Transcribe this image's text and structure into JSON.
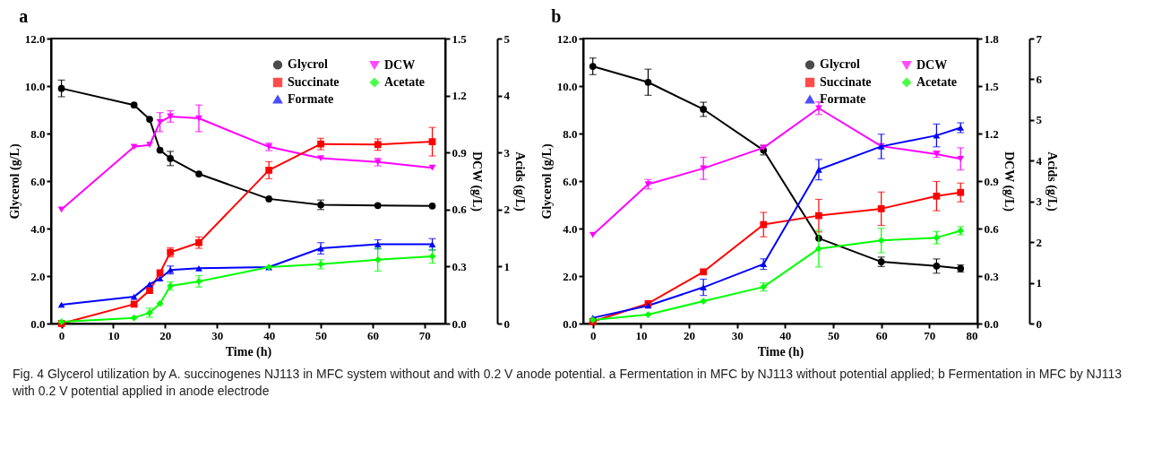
{
  "chart_data": [
    {
      "type": "line",
      "title": "a",
      "xlabel": "Time (h)",
      "ylabel": "Glycerol (g/L)",
      "y2label": "DCW (g/L)",
      "y3label": "Acids (g/L)",
      "x": [
        0,
        14,
        17,
        19,
        21,
        26.5,
        40,
        50,
        61,
        71.5
      ],
      "xlim": [
        -2,
        74
      ],
      "xticks": [
        0,
        10,
        20,
        30,
        40,
        50,
        60,
        70
      ],
      "ylim": [
        0,
        12
      ],
      "yticks": [
        {
          "value": 0,
          "label": "0.0"
        },
        {
          "value": 2,
          "label": "2.0"
        },
        {
          "value": 4,
          "label": "4.0"
        },
        {
          "value": 6,
          "label": "6.0"
        },
        {
          "value": 8,
          "label": "8.0"
        },
        {
          "value": 10,
          "label": "10.0"
        },
        {
          "value": 12,
          "label": "12.0"
        }
      ],
      "y2lim": [
        0,
        1.5
      ],
      "y2ticks": [
        {
          "value": 0,
          "label": "0.0"
        },
        0.3,
        0.6,
        0.9,
        1.2,
        1.5
      ],
      "y3lim": [
        0,
        5
      ],
      "y3ticks": [
        0,
        1,
        2,
        3,
        4,
        5
      ],
      "legend": "top right",
      "grid": false,
      "line_style": "solid",
      "series": [
        {
          "name": "Glycrol",
          "color": "#000000",
          "marker": "circle",
          "values": [
            9.9,
            9.2,
            8.6,
            7.3,
            6.95,
            6.3,
            5.25,
            5.0,
            4.97,
            4.95
          ],
          "errors": [
            0.35,
            null,
            null,
            null,
            0.3,
            null,
            null,
            0.2,
            null,
            null
          ]
        },
        {
          "name": "Succinate",
          "color": "#ff0000",
          "marker": "square",
          "axis": "y3",
          "values": [
            0,
            0.34,
            0.58,
            0.89,
            1.25,
            1.42,
            2.69,
            3.15,
            3.14,
            3.19
          ],
          "errors": [
            null,
            null,
            null,
            null,
            0.08,
            0.1,
            0.15,
            0.1,
            0.1,
            0.25
          ]
        },
        {
          "name": "Formate",
          "color": "#0000ff",
          "marker": "triangle",
          "axis": "y3",
          "values": [
            0.33,
            0.47,
            0.69,
            0.79,
            0.94,
            0.97,
            0.99,
            1.32,
            1.39,
            1.39
          ],
          "errors": [
            null,
            null,
            null,
            null,
            0.07,
            null,
            null,
            0.1,
            0.08,
            0.1
          ]
        },
        {
          "name": "DCW",
          "color": "#ff00ff",
          "marker": "triangle-down",
          "axis": "y2",
          "values": [
            0.6,
            0.93,
            0.94,
            1.06,
            1.09,
            1.08,
            0.93,
            0.87,
            0.85,
            0.82
          ],
          "errors": [
            null,
            null,
            null,
            0.05,
            0.03,
            0.07,
            0.02,
            null,
            0.02,
            null
          ]
        },
        {
          "name": "Acetate",
          "color": "#00ff00",
          "marker": "diamond",
          "axis": "y3",
          "values": [
            0.03,
            0.1,
            0.19,
            0.35,
            0.66,
            0.74,
            0.99,
            1.04,
            1.12,
            1.18
          ],
          "errors": [
            null,
            null,
            0.08,
            null,
            0.07,
            0.1,
            null,
            0.08,
            0.2,
            0.12
          ]
        }
      ],
      "annotations": [
        "Fig. 4  Glycerol utilization by A. succinogenes NJ113 in MFC system without and with 0.2 V anode potential. a Fermentation in MFC by NJ113 without potential applied; b Fermentation in MFC by NJ113 with 0.2 V potential applied in anode electrode"
      ]
    },
    {
      "type": "line",
      "title": "b",
      "xlabel": "Time (h)",
      "ylabel": "Glycerol (g/L)",
      "y2label": "DCW (g/L)",
      "y3label": "Acids (g/L)",
      "x": [
        0,
        11.5,
        23,
        35.5,
        47,
        60,
        71.5,
        76.5
      ],
      "xlim": [
        -2,
        80
      ],
      "xticks": [
        0,
        10,
        20,
        30,
        40,
        50,
        60,
        70,
        80
      ],
      "ylim": [
        0,
        12
      ],
      "yticks": [
        {
          "value": 0,
          "label": "0.0"
        },
        {
          "value": 2,
          "label": "2.0"
        },
        {
          "value": 4,
          "label": "4.0"
        },
        {
          "value": 6,
          "label": "6.0"
        },
        {
          "value": 8,
          "label": "8.0"
        },
        {
          "value": 10,
          "label": "10.0"
        },
        {
          "value": 12,
          "label": "12.0"
        }
      ],
      "y2lim": [
        0,
        1.8
      ],
      "y2ticks": [
        {
          "value": 0,
          "label": "0.0"
        },
        0.3,
        0.6,
        0.9,
        1.2,
        1.5,
        1.8
      ],
      "y3lim": [
        0,
        7
      ],
      "y3ticks": [
        0,
        1,
        2,
        3,
        4,
        5,
        6,
        7
      ],
      "legend": "top right",
      "grid": false,
      "line_style": "solid",
      "series": [
        {
          "name": "Glycrol",
          "color": "#000000",
          "marker": "circle",
          "values": [
            10.83,
            10.16,
            9.02,
            7.3,
            3.59,
            2.6,
            2.42,
            2.32
          ],
          "errors": [
            0.35,
            0.55,
            0.3,
            0.2,
            null,
            0.2,
            0.3,
            0.15
          ]
        },
        {
          "name": "Succinate",
          "color": "#ff0000",
          "marker": "square",
          "axis": "y3",
          "values": [
            0.05,
            0.49,
            1.27,
            2.43,
            2.65,
            2.82,
            3.13,
            3.22
          ],
          "errors": [
            null,
            null,
            null,
            0.3,
            0.4,
            0.41,
            0.36,
            0.23
          ]
        },
        {
          "name": "Formate",
          "color": "#0000ff",
          "marker": "triangle",
          "axis": "y3",
          "values": [
            0.14,
            0.44,
            0.89,
            1.46,
            3.78,
            4.35,
            4.62,
            4.81
          ],
          "errors": [
            null,
            null,
            0.2,
            0.13,
            0.25,
            0.3,
            0.28,
            0.12
          ]
        },
        {
          "name": "DCW",
          "color": "#ff00ff",
          "marker": "triangle-down",
          "axis": "y2",
          "values": [
            0.56,
            0.88,
            0.98,
            1.11,
            1.36,
            1.12,
            1.07,
            1.04
          ],
          "errors": [
            null,
            0.03,
            0.07,
            null,
            0.04,
            null,
            0.02,
            0.07
          ]
        },
        {
          "name": "Acetate",
          "color": "#00ff00",
          "marker": "diamond",
          "axis": "y3",
          "values": [
            0.09,
            0.22,
            0.55,
            0.9,
            1.84,
            2.04,
            2.11,
            2.28
          ],
          "errors": [
            null,
            null,
            null,
            0.1,
            0.45,
            0.3,
            0.15,
            0.1
          ]
        }
      ]
    }
  ]
}
